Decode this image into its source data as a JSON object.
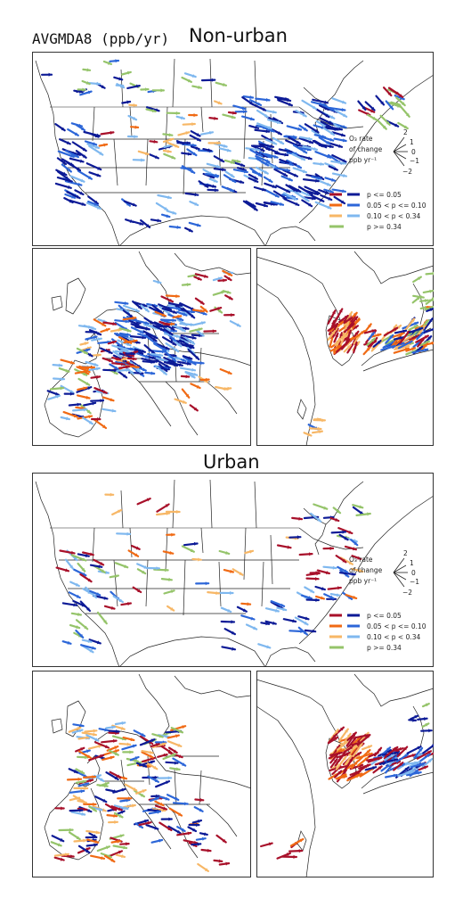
{
  "title": {
    "metric": "AVGMDA8 (ppb/yr)",
    "nonurban": "Non-urban",
    "urban": "Urban"
  },
  "legend": {
    "rate_line1": "O₃ rate",
    "rate_line2": "of change",
    "rate_line3": "ppb yr⁻¹",
    "ticks": [
      "2",
      "1",
      "0",
      "−1",
      "−2"
    ],
    "classes": [
      {
        "label": "p <= 0.05",
        "neg": "#a8102a",
        "pos": "#0c1a96"
      },
      {
        "label": "0.05 < p <= 0.10",
        "neg": "#f06a14",
        "pos": "#2c66d8"
      },
      {
        "label": "0.10 < p < 0.34",
        "neg": "#f7b766",
        "pos": "#7fb8ef"
      },
      {
        "label": "p >= 0.34",
        "neg": "#95c46a",
        "pos": "#95c46a"
      }
    ]
  },
  "colors": {
    "dark_red": "#a8102a",
    "orange": "#f06a14",
    "light_orange": "#f7b766",
    "dark_blue": "#0c1a96",
    "blue": "#2c66d8",
    "light_blue": "#7fb8ef",
    "green": "#95c46a"
  },
  "panels": [
    {
      "id": "na-nonurban",
      "region": "north-america",
      "setting": "non-urban"
    },
    {
      "id": "eu-nonurban",
      "region": "europe",
      "setting": "non-urban"
    },
    {
      "id": "ea-nonurban",
      "region": "east-asia",
      "setting": "non-urban"
    },
    {
      "id": "na-urban",
      "region": "north-america",
      "setting": "urban"
    },
    {
      "id": "eu-urban",
      "region": "europe",
      "setting": "urban"
    },
    {
      "id": "ea-urban",
      "region": "east-asia",
      "setting": "urban"
    }
  ]
}
